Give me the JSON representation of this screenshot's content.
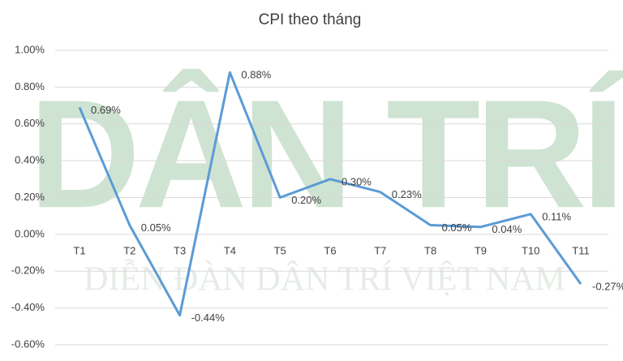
{
  "chart_data": {
    "type": "line",
    "title": "CPI theo tháng",
    "watermark": {
      "logo": "DÂN TRÍ",
      "text": "DIỄN ĐÀN DÂN TRÍ VIỆT NAM"
    },
    "categories": [
      "T1",
      "T2",
      "T3",
      "T4",
      "T5",
      "T6",
      "T7",
      "T8",
      "T9",
      "T10",
      "T11"
    ],
    "series": [
      {
        "name": "CPI",
        "color": "#5b9bd5",
        "values": [
          0.69,
          0.05,
          -0.44,
          0.88,
          0.2,
          0.3,
          0.23,
          0.05,
          0.04,
          0.11,
          -0.27
        ],
        "value_labels": [
          "0.69%",
          "0.05%",
          "-0.44%",
          "0.88%",
          "0.20%",
          "0.30%",
          "0.23%",
          "0.05%",
          "0.04%",
          "0.11%",
          "-0.27%"
        ]
      }
    ],
    "ylim": [
      -0.6,
      1.0
    ],
    "yticks": [
      {
        "value": -0.6,
        "label": "-0.60%"
      },
      {
        "value": -0.4,
        "label": "-0.40%"
      },
      {
        "value": -0.2,
        "label": "-0.20%"
      },
      {
        "value": 0,
        "label": "0.00%"
      },
      {
        "value": 0.2,
        "label": "0.20%"
      },
      {
        "value": 0.4,
        "label": "0.40%"
      },
      {
        "value": 0.6,
        "label": "0.60%"
      },
      {
        "value": 0.8,
        "label": "0.80%"
      },
      {
        "value": 1.0,
        "label": "1.00%"
      }
    ],
    "grid": true
  }
}
